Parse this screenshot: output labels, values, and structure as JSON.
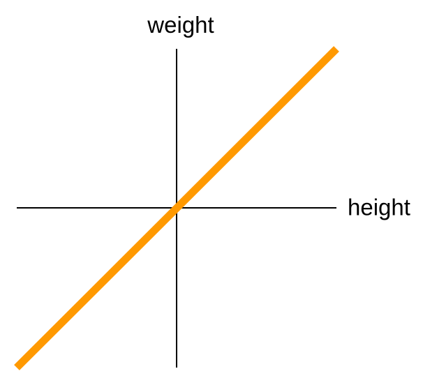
{
  "chart_data": {
    "type": "line",
    "xlabel": "height",
    "ylabel": "weight",
    "xlim": [
      -1,
      1
    ],
    "ylim": [
      -1,
      1
    ],
    "grid": false,
    "ticks": false,
    "series": [
      {
        "x": [
          -1,
          1
        ],
        "y": [
          -1,
          1
        ],
        "color": "#FF9900"
      }
    ],
    "axis_color": "#000000"
  }
}
